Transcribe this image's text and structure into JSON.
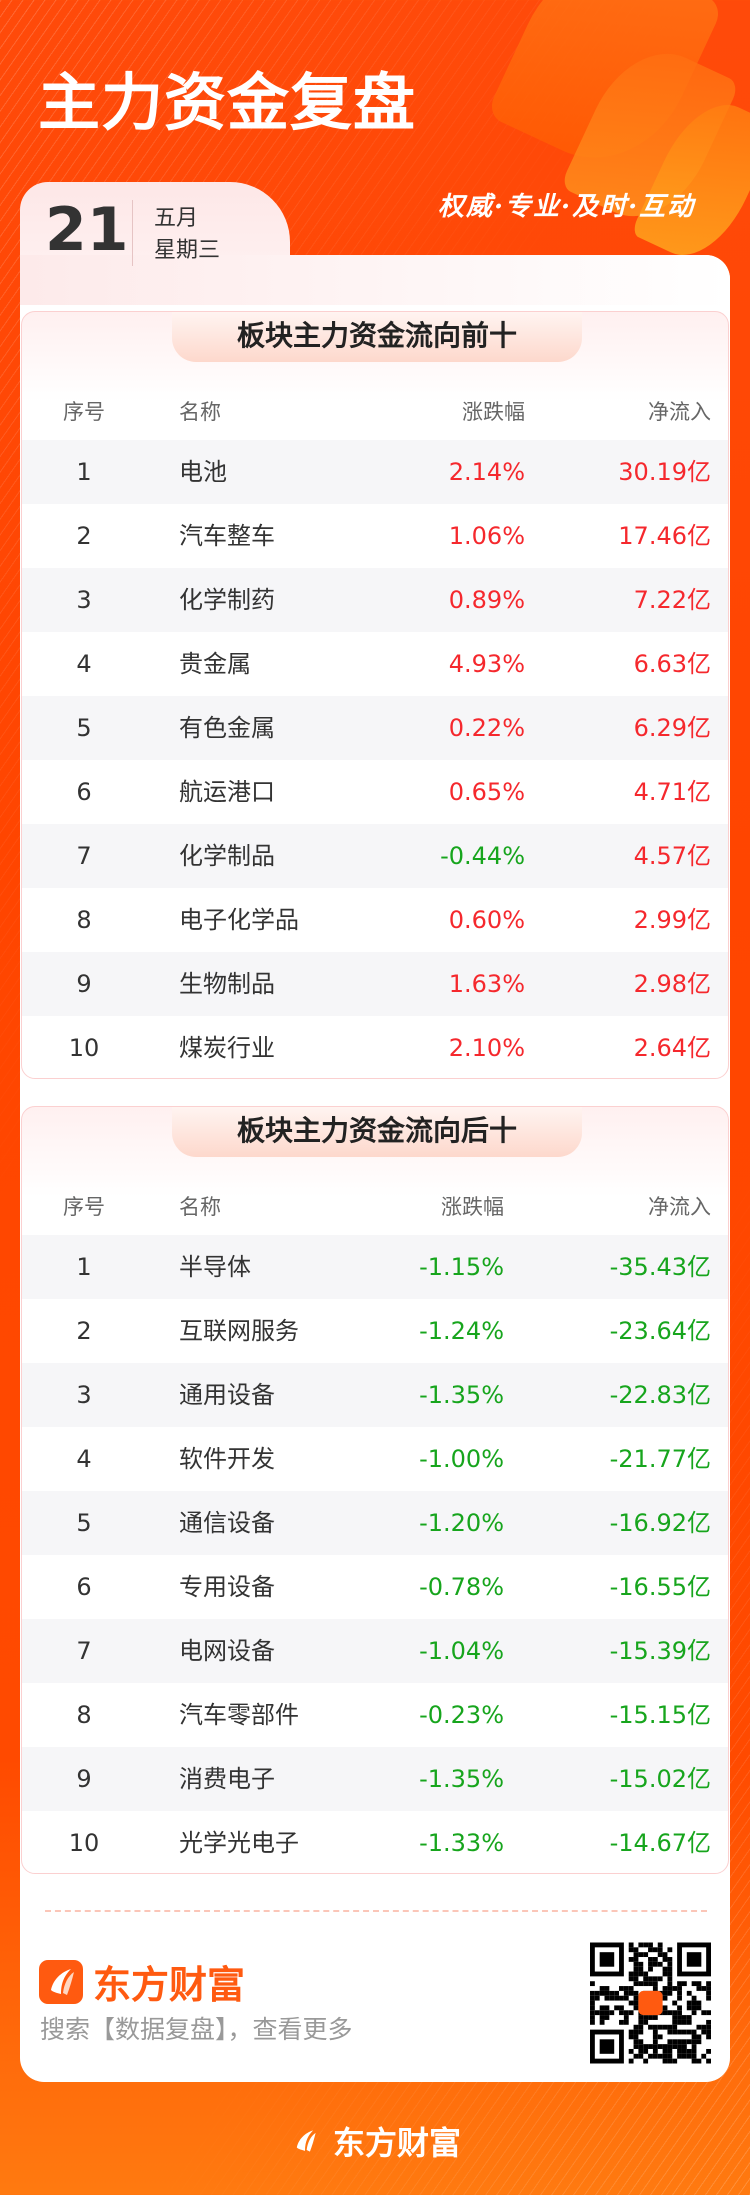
{
  "header": {
    "title": "主力资金复盘",
    "slogan": "权威·专业·及时·互动",
    "day": "21",
    "month": "五月",
    "weekday": "星期三"
  },
  "colors": {
    "up": "#f5282d",
    "down": "#17a51d",
    "brand": "#ff5a10"
  },
  "columns": {
    "rank": "序号",
    "name": "名称",
    "change": "涨跌幅",
    "inflow": "净流入"
  },
  "top": {
    "title": "板块主力资金流向前十",
    "rows": [
      {
        "rank": "1",
        "name": "电池",
        "change": "2.14%",
        "inflow": "30.19亿"
      },
      {
        "rank": "2",
        "name": "汽车整车",
        "change": "1.06%",
        "inflow": "17.46亿"
      },
      {
        "rank": "3",
        "name": "化学制药",
        "change": "0.89%",
        "inflow": "7.22亿"
      },
      {
        "rank": "4",
        "name": "贵金属",
        "change": "4.93%",
        "inflow": "6.63亿"
      },
      {
        "rank": "5",
        "name": "有色金属",
        "change": "0.22%",
        "inflow": "6.29亿"
      },
      {
        "rank": "6",
        "name": "航运港口",
        "change": "0.65%",
        "inflow": "4.71亿"
      },
      {
        "rank": "7",
        "name": "化学制品",
        "change": "-0.44%",
        "inflow": "4.57亿"
      },
      {
        "rank": "8",
        "name": "电子化学品",
        "change": "0.60%",
        "inflow": "2.99亿"
      },
      {
        "rank": "9",
        "name": "生物制品",
        "change": "1.63%",
        "inflow": "2.98亿"
      },
      {
        "rank": "10",
        "name": "煤炭行业",
        "change": "2.10%",
        "inflow": "2.64亿"
      }
    ]
  },
  "bottom": {
    "title": "板块主力资金流向后十",
    "rows": [
      {
        "rank": "1",
        "name": "半导体",
        "change": "-1.15%",
        "inflow": "-35.43亿"
      },
      {
        "rank": "2",
        "name": "互联网服务",
        "change": "-1.24%",
        "inflow": "-23.64亿"
      },
      {
        "rank": "3",
        "name": "通用设备",
        "change": "-1.35%",
        "inflow": "-22.83亿"
      },
      {
        "rank": "4",
        "name": "软件开发",
        "change": "-1.00%",
        "inflow": "-21.77亿"
      },
      {
        "rank": "5",
        "name": "通信设备",
        "change": "-1.20%",
        "inflow": "-16.92亿"
      },
      {
        "rank": "6",
        "name": "专用设备",
        "change": "-0.78%",
        "inflow": "-16.55亿"
      },
      {
        "rank": "7",
        "name": "电网设备",
        "change": "-1.04%",
        "inflow": "-15.39亿"
      },
      {
        "rank": "8",
        "name": "汽车零部件",
        "change": "-0.23%",
        "inflow": "-15.15亿"
      },
      {
        "rank": "9",
        "name": "消费电子",
        "change": "-1.35%",
        "inflow": "-15.02亿"
      },
      {
        "rank": "10",
        "name": "光学光电子",
        "change": "-1.33%",
        "inflow": "-14.67亿"
      }
    ]
  },
  "footer": {
    "brand": "东方财富",
    "search_hint": "搜索【数据复盘】，查看更多",
    "qr_icon": "qr-code-icon"
  }
}
